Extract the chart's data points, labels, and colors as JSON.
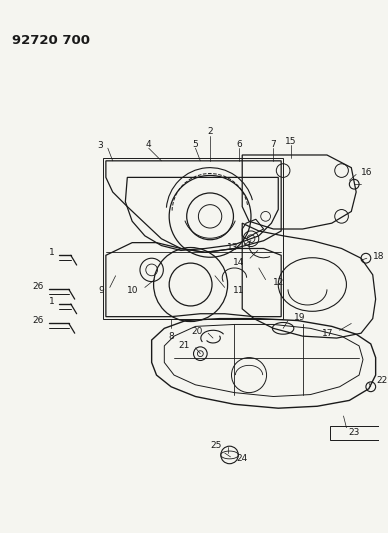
{
  "title": "92720 700",
  "bg_color": "#f5f5f0",
  "line_color": "#1a1a1a",
  "fig_width": 3.88,
  "fig_height": 5.33,
  "dpi": 100
}
